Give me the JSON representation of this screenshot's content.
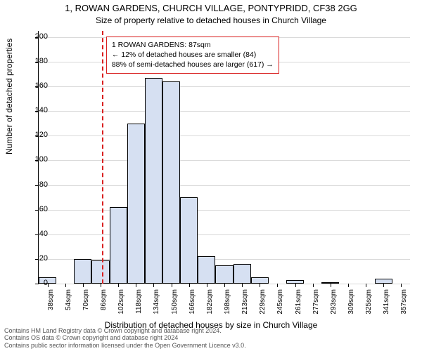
{
  "titles": {
    "main": "1, ROWAN GARDENS, CHURCH VILLAGE, PONTYPRIDD, CF38 2GG",
    "sub": "Size of property relative to detached houses in Church Village"
  },
  "axes": {
    "ylabel": "Number of detached properties",
    "xlabel": "Distribution of detached houses by size in Church Village",
    "ylim": [
      0,
      205
    ],
    "yticks": [
      0,
      20,
      40,
      60,
      80,
      100,
      120,
      140,
      160,
      180,
      200
    ],
    "xticks": [
      "38sqm",
      "54sqm",
      "70sqm",
      "86sqm",
      "102sqm",
      "118sqm",
      "134sqm",
      "150sqm",
      "166sqm",
      "182sqm",
      "198sqm",
      "213sqm",
      "229sqm",
      "245sqm",
      "261sqm",
      "277sqm",
      "293sqm",
      "309sqm",
      "325sqm",
      "341sqm",
      "357sqm"
    ]
  },
  "chart": {
    "type": "histogram",
    "bar_color": "#d6e0f2",
    "bar_border": "#000000",
    "grid_color": "#d9d9d9",
    "background": "#ffffff",
    "n_bins": 21,
    "values": [
      5,
      0,
      20,
      19,
      62,
      130,
      167,
      164,
      70,
      22,
      15,
      16,
      5,
      0,
      3,
      0,
      1,
      0,
      0,
      4,
      0
    ]
  },
  "marker": {
    "x_value": 87,
    "x_min": 30,
    "x_max": 365,
    "color": "#d92020"
  },
  "callout": {
    "border_color": "#d92020",
    "line1": "1 ROWAN GARDENS: 87sqm",
    "line2": "← 12% of detached houses are smaller (84)",
    "line3": "88% of semi-detached houses are larger (617) →"
  },
  "footer": {
    "line1": "Contains HM Land Registry data © Crown copyright and database right 2024.",
    "line2": "Contains OS data © Crown copyright and database right 2024",
    "line3": "Contains public sector information licensed under the Open Government Licence v3.0."
  }
}
